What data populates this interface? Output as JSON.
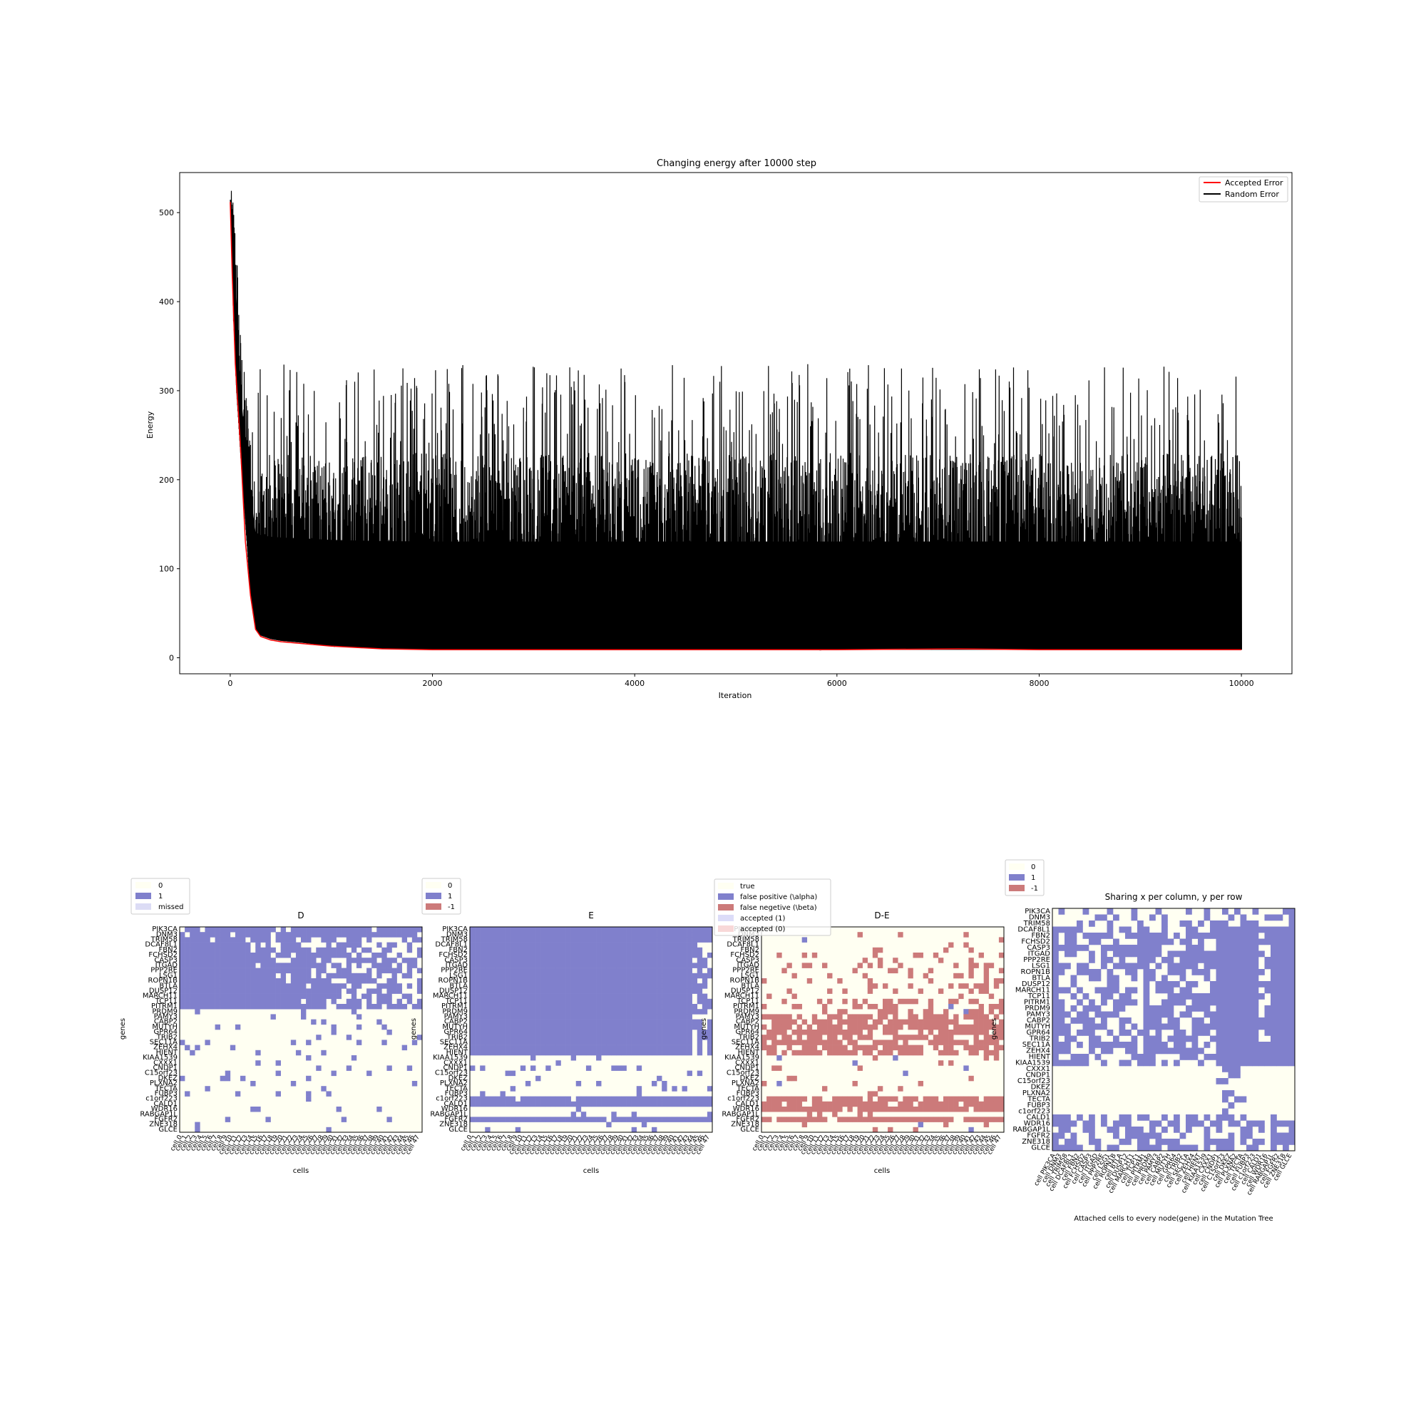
{
  "colors": {
    "accepted_line": "#ff0000",
    "random_line": "#000000",
    "zero": "#fffff2",
    "one": "#8080cc",
    "minus_one": "#cc7a7a",
    "missed": "#dcdcf5",
    "accepted1": "#dcdcf8",
    "accepted0": "#f8d8d8"
  },
  "genes": [
    "PIK3CA",
    "DNM3",
    "TRIM58",
    "DCAF8L1",
    "FBN2",
    "FCHSD2",
    "CASP3",
    "ITGAD",
    "PPP2RE",
    "LSG1",
    "ROPN1B",
    "BTLA",
    "DUSP12",
    "MARCH11",
    "TCP11",
    "PITRM1",
    "PRDM9",
    "PAMY3",
    "CABP2",
    "MUTYH",
    "GPR64",
    "TRIB2",
    "SEC11A",
    "ZEHX4",
    "HIENT",
    "KIAA1539",
    "CXXX1",
    "CNDP1",
    "C15orf23",
    "DKEZ",
    "PLXNA2",
    "TECTA",
    "FUBP3",
    "c1orf223",
    "CALD1",
    "WDR16",
    "RABGAP1L",
    "FGFR2",
    "ZNE318",
    "GLCE"
  ],
  "chart_data": [
    {
      "type": "line",
      "title": "Changing energy after 10000 step",
      "xlabel": "Iteration",
      "ylabel": "Energy",
      "xlim": [
        -500,
        10500
      ],
      "ylim": [
        -18,
        545
      ],
      "xticks": [
        0,
        2000,
        4000,
        6000,
        8000,
        10000
      ],
      "yticks": [
        0,
        100,
        200,
        300,
        400,
        500
      ],
      "legend_position": "upper right",
      "series": [
        {
          "name": "Accepted Error",
          "color": "#ff0000",
          "x": [
            0,
            20,
            50,
            100,
            150,
            200,
            250,
            300,
            400,
            500,
            700,
            1000,
            1500,
            2000,
            4000,
            6000,
            7200,
            8000,
            10000
          ],
          "y": [
            512,
            430,
            330,
            240,
            130,
            70,
            32,
            24,
            20,
            18,
            16,
            13,
            10,
            9,
            9,
            9,
            10,
            9,
            9
          ]
        },
        {
          "name": "Random Error",
          "color": "#000000",
          "envelope": {
            "x": [
              0,
              10,
              30,
              60,
              100,
              150,
              200,
              250,
              300,
              400,
              500,
              700,
              1000,
              1500,
              2000,
              4000,
              6000,
              8000,
              10000
            ],
            "low": [
              512,
              480,
              380,
              300,
              230,
              150,
              70,
              32,
              25,
              21,
              19,
              17,
              13,
              10,
              9,
              9,
              9,
              9,
              9
            ],
            "typical_high": [
              515,
              525,
              520,
              480,
              370,
              310,
              280,
              230,
              230,
              230,
              230,
              230,
              230,
              230,
              230,
              230,
              230,
              230,
              230
            ],
            "max_spike": 330
          }
        }
      ]
    },
    {
      "type": "heatmap",
      "title": "D",
      "xlabel": "cells",
      "ylabel": "genes",
      "columns": 48,
      "legend": [
        "0",
        "1",
        "missed"
      ],
      "layout": "ones_top_rows_sparse_bottom"
    },
    {
      "type": "heatmap",
      "title": "E",
      "xlabel": "cells",
      "ylabel": "genes",
      "columns": 48,
      "legend": [
        "0",
        "1",
        "-1"
      ],
      "layout": "ones_top_rows_bands_bottom"
    },
    {
      "type": "heatmap",
      "title": "D-E",
      "xlabel": "cells",
      "ylabel": "genes",
      "columns": 48,
      "legend": [
        "true",
        "false positive (\\alpha)",
        "false negetive (\\beta)",
        "accepted (1)",
        "accepted (0)"
      ],
      "layout": "errors_diff"
    },
    {
      "type": "heatmap",
      "title": "Sharing x per column, y per row",
      "xlabel": "Attached cells to every node(gene) in the Mutation Tree",
      "ylabel": "genes",
      "columns": 40,
      "legend": [
        "0",
        "1",
        "-1"
      ],
      "layout": "tree_sharing"
    }
  ]
}
